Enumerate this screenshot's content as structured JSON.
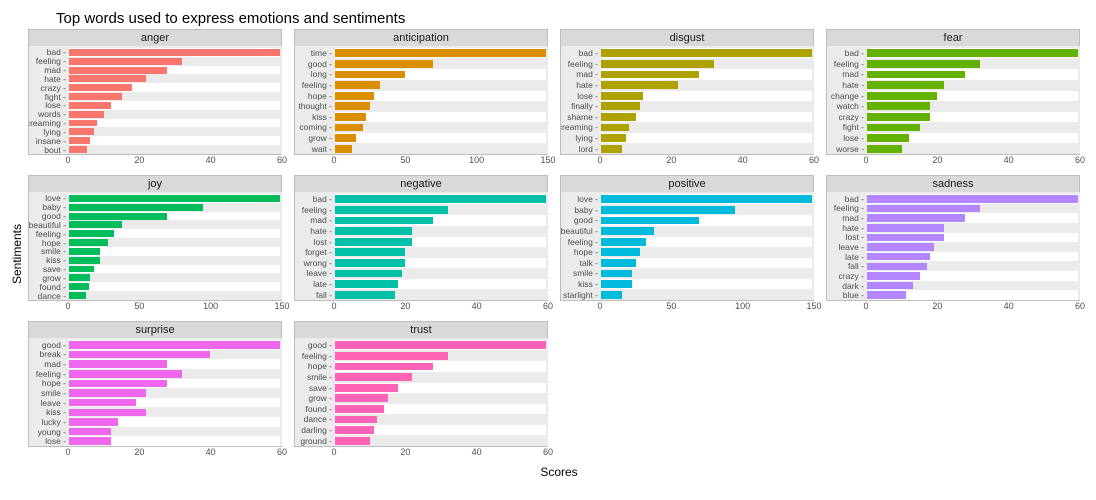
{
  "title": "Top words used to express emotions and sentiments",
  "ylabel": "Sentiments",
  "xlabel": "Scores",
  "panel_bg": "#ebebeb",
  "strip_bg": "#d9d9d9",
  "alt_row_bg": "#ffffff",
  "tick_fontsize": 9,
  "label_fontsize": 12,
  "title_fontsize": 15,
  "facets": [
    {
      "name": "anger",
      "color": "#f8766d",
      "xmax": 60,
      "xticks": [
        0,
        20,
        40,
        60
      ],
      "bars": [
        {
          "label": "bad",
          "value": 62
        },
        {
          "label": "feeling",
          "value": 32
        },
        {
          "label": "mad",
          "value": 28
        },
        {
          "label": "hate",
          "value": 22
        },
        {
          "label": "crazy",
          "value": 18
        },
        {
          "label": "fight",
          "value": 15
        },
        {
          "label": "lose",
          "value": 12
        },
        {
          "label": "words",
          "value": 10
        },
        {
          "label": "screaming",
          "value": 8
        },
        {
          "label": "lying",
          "value": 7
        },
        {
          "label": "insane",
          "value": 6
        },
        {
          "label": "bout",
          "value": 5
        }
      ]
    },
    {
      "name": "anticipation",
      "color": "#db8e00",
      "xmax": 150,
      "xticks": [
        0,
        50,
        100,
        150
      ],
      "bars": [
        {
          "label": "time",
          "value": 160
        },
        {
          "label": "good",
          "value": 70
        },
        {
          "label": "long",
          "value": 50
        },
        {
          "label": "feeling",
          "value": 32
        },
        {
          "label": "hope",
          "value": 28
        },
        {
          "label": "thought",
          "value": 25
        },
        {
          "label": "kiss",
          "value": 22
        },
        {
          "label": "coming",
          "value": 20
        },
        {
          "label": "grow",
          "value": 15
        },
        {
          "label": "wait",
          "value": 12
        }
      ]
    },
    {
      "name": "disgust",
      "color": "#aea200",
      "xmax": 60,
      "xticks": [
        0,
        20,
        40,
        60
      ],
      "bars": [
        {
          "label": "bad",
          "value": 62
        },
        {
          "label": "feeling",
          "value": 32
        },
        {
          "label": "mad",
          "value": 28
        },
        {
          "label": "hate",
          "value": 22
        },
        {
          "label": "lose",
          "value": 12
        },
        {
          "label": "finally",
          "value": 11
        },
        {
          "label": "shame",
          "value": 10
        },
        {
          "label": "screaming",
          "value": 8
        },
        {
          "label": "lying",
          "value": 7
        },
        {
          "label": "lord",
          "value": 6
        }
      ]
    },
    {
      "name": "fear",
      "color": "#64b200",
      "xmax": 60,
      "xticks": [
        0,
        20,
        40,
        60
      ],
      "bars": [
        {
          "label": "bad",
          "value": 62
        },
        {
          "label": "feeling",
          "value": 32
        },
        {
          "label": "mad",
          "value": 28
        },
        {
          "label": "hate",
          "value": 22
        },
        {
          "label": "change",
          "value": 20
        },
        {
          "label": "watch",
          "value": 18
        },
        {
          "label": "crazy",
          "value": 18
        },
        {
          "label": "fight",
          "value": 15
        },
        {
          "label": "lose",
          "value": 12
        },
        {
          "label": "worse",
          "value": 10
        }
      ]
    },
    {
      "name": "joy",
      "color": "#00bd5c",
      "xmax": 150,
      "xticks": [
        0,
        50,
        100,
        150
      ],
      "bars": [
        {
          "label": "love",
          "value": 160
        },
        {
          "label": "baby",
          "value": 95
        },
        {
          "label": "good",
          "value": 70
        },
        {
          "label": "beautiful",
          "value": 38
        },
        {
          "label": "feeling",
          "value": 32
        },
        {
          "label": "hope",
          "value": 28
        },
        {
          "label": "smile",
          "value": 22
        },
        {
          "label": "kiss",
          "value": 22
        },
        {
          "label": "save",
          "value": 18
        },
        {
          "label": "grow",
          "value": 15
        },
        {
          "label": "found",
          "value": 14
        },
        {
          "label": "dance",
          "value": 12
        }
      ]
    },
    {
      "name": "negative",
      "color": "#00c1a7",
      "xmax": 60,
      "xticks": [
        0,
        20,
        40,
        60
      ],
      "bars": [
        {
          "label": "bad",
          "value": 62
        },
        {
          "label": "feeling",
          "value": 32
        },
        {
          "label": "mad",
          "value": 28
        },
        {
          "label": "hate",
          "value": 22
        },
        {
          "label": "lost",
          "value": 22
        },
        {
          "label": "forget",
          "value": 20
        },
        {
          "label": "wrong",
          "value": 20
        },
        {
          "label": "leave",
          "value": 19
        },
        {
          "label": "late",
          "value": 18
        },
        {
          "label": "fall",
          "value": 17
        }
      ]
    },
    {
      "name": "positive",
      "color": "#00bade",
      "xmax": 150,
      "xticks": [
        0,
        50,
        100,
        150
      ],
      "bars": [
        {
          "label": "love",
          "value": 160
        },
        {
          "label": "baby",
          "value": 95
        },
        {
          "label": "good",
          "value": 70
        },
        {
          "label": "beautiful",
          "value": 38
        },
        {
          "label": "feeling",
          "value": 32
        },
        {
          "label": "hope",
          "value": 28
        },
        {
          "label": "talk",
          "value": 25
        },
        {
          "label": "smile",
          "value": 22
        },
        {
          "label": "kiss",
          "value": 22
        },
        {
          "label": "starlight",
          "value": 15
        }
      ]
    },
    {
      "name": "sadness",
      "color": "#b385ff",
      "xmax": 60,
      "xticks": [
        0,
        20,
        40,
        60
      ],
      "bars": [
        {
          "label": "bad",
          "value": 62
        },
        {
          "label": "feeling",
          "value": 32
        },
        {
          "label": "mad",
          "value": 28
        },
        {
          "label": "hate",
          "value": 22
        },
        {
          "label": "lost",
          "value": 22
        },
        {
          "label": "leave",
          "value": 19
        },
        {
          "label": "late",
          "value": 18
        },
        {
          "label": "fall",
          "value": 17
        },
        {
          "label": "crazy",
          "value": 15
        },
        {
          "label": "dark",
          "value": 13
        },
        {
          "label": "blue",
          "value": 11
        }
      ]
    },
    {
      "name": "surprise",
      "color": "#ef67eb",
      "xmax": 60,
      "xticks": [
        0,
        20,
        40,
        60
      ],
      "bars": [
        {
          "label": "good",
          "value": 70
        },
        {
          "label": "break",
          "value": 40
        },
        {
          "label": "mad",
          "value": 28
        },
        {
          "label": "feeling",
          "value": 32
        },
        {
          "label": "hope",
          "value": 28
        },
        {
          "label": "smile",
          "value": 22
        },
        {
          "label": "leave",
          "value": 19
        },
        {
          "label": "kiss",
          "value": 22
        },
        {
          "label": "lucky",
          "value": 14
        },
        {
          "label": "young",
          "value": 12
        },
        {
          "label": "lose",
          "value": 12
        }
      ]
    },
    {
      "name": "trust",
      "color": "#ff63b6",
      "xmax": 60,
      "xticks": [
        0,
        20,
        40,
        60
      ],
      "bars": [
        {
          "label": "good",
          "value": 70
        },
        {
          "label": "feeling",
          "value": 32
        },
        {
          "label": "hope",
          "value": 28
        },
        {
          "label": "smile",
          "value": 22
        },
        {
          "label": "save",
          "value": 18
        },
        {
          "label": "grow",
          "value": 15
        },
        {
          "label": "found",
          "value": 14
        },
        {
          "label": "dance",
          "value": 12
        },
        {
          "label": "darling",
          "value": 11
        },
        {
          "label": "ground",
          "value": 10
        }
      ]
    }
  ]
}
